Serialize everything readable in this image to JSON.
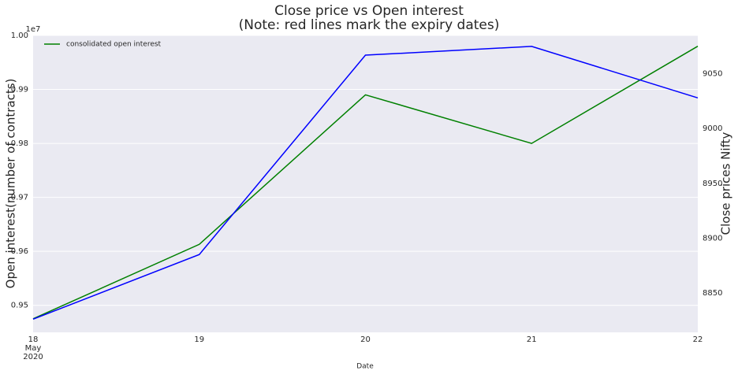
{
  "chart_data": {
    "type": "line",
    "title": "Close price vs Open interest",
    "subtitle": "(Note: red lines mark the expiry dates)",
    "categories": [
      "18",
      "19",
      "20",
      "21",
      "22"
    ],
    "x_tick_sublabels": [
      "May",
      "2020"
    ],
    "x_label": "Date",
    "y_label": "Open interest(number of contracts)",
    "y_offset_label": "1e7",
    "y2_label": "Close prices Nifty",
    "ylim": [
      0.945,
      1.0
    ],
    "yticks": [
      0.95,
      0.96,
      0.97,
      0.98,
      0.99,
      {
        "value": 1.0,
        "label": "1.00"
      }
    ],
    "y2lim": [
      8814,
      9085
    ],
    "y2ticks": [
      8850,
      8900,
      8950,
      9000,
      9050
    ],
    "grid": true,
    "legend": "upper left",
    "series": [
      {
        "name": "consolidated open interest",
        "color": "#008000",
        "values": [
          0.9475,
          0.9613,
          0.989,
          0.98,
          0.998
        ]
      },
      {
        "color": "#0000ff",
        "axis": "y2",
        "values": [
          8826,
          8885,
          9067,
          9075,
          9028
        ]
      }
    ]
  }
}
